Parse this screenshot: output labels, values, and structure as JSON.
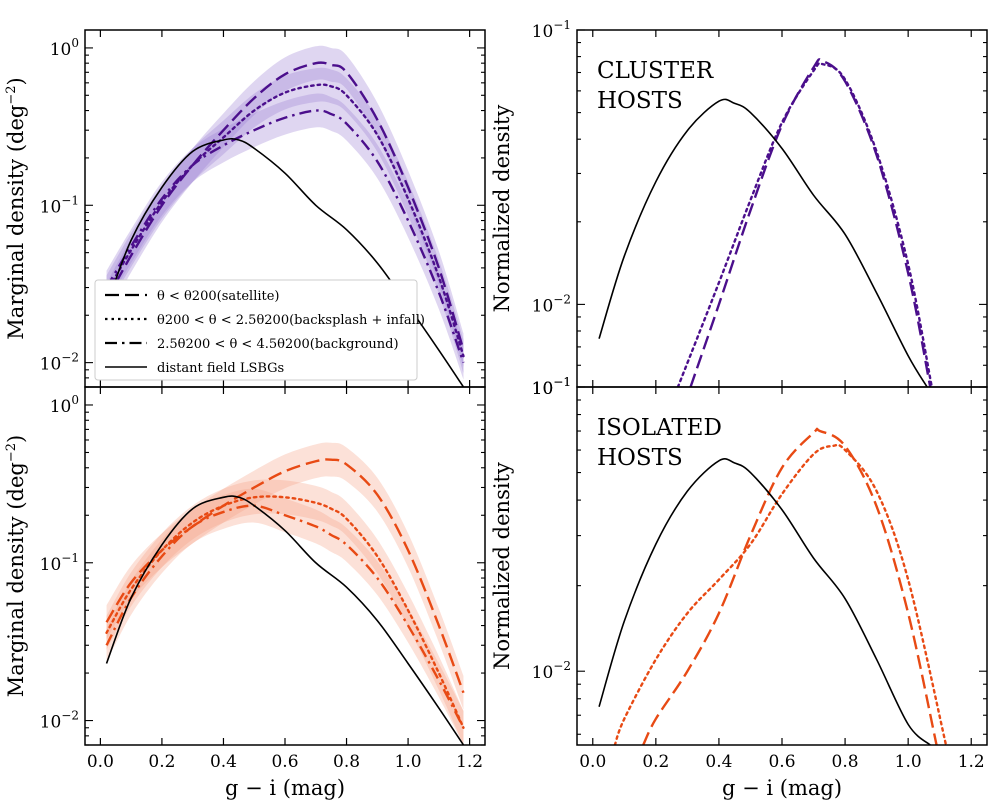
{
  "colors": {
    "cluster": "#4b0f8c",
    "cluster_band": "#9b7fd4",
    "isolated": "#e84a14",
    "isolated_band": "#f5a187",
    "field": "#000000"
  },
  "chart_data": [
    {
      "id": "cluster-marginal",
      "type": "line",
      "yscale": "log",
      "xlim": [
        -0.05,
        1.25
      ],
      "ylim": [
        0.007,
        1.3
      ],
      "xticks": [
        "0.0",
        "0.2",
        "0.4",
        "0.6",
        "0.8",
        "1.0",
        "1.2"
      ],
      "yticks": [
        "10^0",
        "10^-1",
        "10^-2"
      ],
      "ylabel": "Marginal density (deg^-2)",
      "xlabel": "",
      "legend": {
        "placement": "lower-left",
        "entries": [
          {
            "label": "θ < θ200(satellite)",
            "style": "dashed"
          },
          {
            "label": "θ200 < θ < 2.5θ200(backsplash + infall)",
            "style": "dotted"
          },
          {
            "label": "2.5θ200 < θ < 4.5θ200(background)",
            "style": "dashdot"
          },
          {
            "label": "distant field LSBGs",
            "style": "solid"
          }
        ]
      },
      "series": [
        {
          "name": "satellite",
          "style": "dashed",
          "band": true,
          "x": [
            0.02,
            0.1,
            0.2,
            0.3,
            0.4,
            0.5,
            0.6,
            0.7,
            0.75,
            0.8,
            0.9,
            1.0,
            1.1,
            1.18
          ],
          "y": [
            0.025,
            0.048,
            0.1,
            0.18,
            0.3,
            0.48,
            0.68,
            0.8,
            0.78,
            0.7,
            0.35,
            0.13,
            0.04,
            0.012
          ]
        },
        {
          "name": "backsplash + infall",
          "style": "dotted",
          "band": true,
          "x": [
            0.02,
            0.1,
            0.2,
            0.3,
            0.4,
            0.5,
            0.6,
            0.7,
            0.75,
            0.8,
            0.9,
            1.0,
            1.1,
            1.18
          ],
          "y": [
            0.028,
            0.052,
            0.105,
            0.18,
            0.27,
            0.4,
            0.52,
            0.58,
            0.57,
            0.5,
            0.28,
            0.11,
            0.035,
            0.011
          ]
        },
        {
          "name": "background",
          "style": "dashdot",
          "band": true,
          "x": [
            0.02,
            0.1,
            0.2,
            0.3,
            0.4,
            0.5,
            0.6,
            0.7,
            0.75,
            0.8,
            0.9,
            1.0,
            1.1,
            1.18
          ],
          "y": [
            0.03,
            0.055,
            0.11,
            0.18,
            0.24,
            0.3,
            0.36,
            0.4,
            0.38,
            0.33,
            0.19,
            0.08,
            0.028,
            0.01
          ]
        },
        {
          "name": "distant field LSBGs",
          "style": "solid",
          "band": false,
          "x": [
            0.02,
            0.1,
            0.2,
            0.3,
            0.4,
            0.45,
            0.5,
            0.6,
            0.7,
            0.8,
            0.9,
            1.0,
            1.1,
            1.18
          ],
          "y": [
            0.023,
            0.06,
            0.13,
            0.22,
            0.26,
            0.26,
            0.23,
            0.16,
            0.1,
            0.07,
            0.043,
            0.023,
            0.012,
            0.007
          ]
        }
      ]
    },
    {
      "id": "cluster-normalized",
      "type": "line",
      "yscale": "log",
      "xlim": [
        -0.05,
        1.25
      ],
      "ylim": [
        0.005,
        0.1
      ],
      "xticks": [
        "0.0",
        "0.2",
        "0.4",
        "0.6",
        "0.8",
        "1.0",
        "1.2"
      ],
      "yticks": [
        "10^-1",
        "10^-2",
        "10^-1"
      ],
      "ylabel": "Normalized density",
      "xlabel": "",
      "annotation": [
        "CLUSTER",
        "HOSTS"
      ],
      "series": [
        {
          "name": "satellite",
          "style": "dashed",
          "x": [
            0.31,
            0.4,
            0.5,
            0.6,
            0.7,
            0.73,
            0.8,
            0.9,
            1.0,
            1.07
          ],
          "y": [
            0.005,
            0.01,
            0.022,
            0.045,
            0.073,
            0.077,
            0.065,
            0.035,
            0.013,
            0.005
          ]
        },
        {
          "name": "backsplash + infall",
          "style": "dotted",
          "x": [
            0.27,
            0.4,
            0.5,
            0.6,
            0.7,
            0.73,
            0.8,
            0.9,
            1.0,
            1.075
          ],
          "y": [
            0.005,
            0.012,
            0.024,
            0.046,
            0.071,
            0.075,
            0.066,
            0.036,
            0.014,
            0.005
          ]
        },
        {
          "name": "distant field LSBGs",
          "style": "solid",
          "x": [
            0.02,
            0.1,
            0.2,
            0.3,
            0.4,
            0.45,
            0.5,
            0.6,
            0.7,
            0.8,
            0.9,
            1.0,
            1.06
          ],
          "y": [
            0.0075,
            0.015,
            0.028,
            0.043,
            0.055,
            0.054,
            0.05,
            0.037,
            0.025,
            0.018,
            0.011,
            0.0065,
            0.005
          ]
        }
      ]
    },
    {
      "id": "isolated-marginal",
      "type": "line",
      "yscale": "log",
      "xlim": [
        -0.05,
        1.25
      ],
      "ylim": [
        0.007,
        1.3
      ],
      "xticks": [
        "0.0",
        "0.2",
        "0.4",
        "0.6",
        "0.8",
        "1.0",
        "1.2"
      ],
      "yticks": [
        "10^0",
        "10^-1",
        "10^-2"
      ],
      "ylabel": "Marginal density (deg^-2)",
      "xlabel": "g − i (mag)",
      "series": [
        {
          "name": "satellite",
          "style": "dashed",
          "band": true,
          "x": [
            0.02,
            0.1,
            0.2,
            0.3,
            0.4,
            0.5,
            0.6,
            0.7,
            0.75,
            0.8,
            0.9,
            1.0,
            1.1,
            1.18
          ],
          "y": [
            0.042,
            0.075,
            0.12,
            0.17,
            0.23,
            0.3,
            0.38,
            0.44,
            0.45,
            0.42,
            0.27,
            0.12,
            0.04,
            0.015
          ]
        },
        {
          "name": "backsplash + infall",
          "style": "dotted",
          "band": true,
          "x": [
            0.02,
            0.1,
            0.2,
            0.3,
            0.4,
            0.5,
            0.6,
            0.7,
            0.75,
            0.8,
            0.9,
            1.0,
            1.1,
            1.18
          ],
          "y": [
            0.036,
            0.068,
            0.12,
            0.18,
            0.23,
            0.26,
            0.26,
            0.24,
            0.22,
            0.19,
            0.11,
            0.05,
            0.02,
            0.009
          ]
        },
        {
          "name": "background",
          "style": "dashdot",
          "band": true,
          "x": [
            0.02,
            0.1,
            0.2,
            0.3,
            0.4,
            0.5,
            0.6,
            0.7,
            0.75,
            0.8,
            0.9,
            1.0,
            1.1,
            1.18
          ],
          "y": [
            0.03,
            0.06,
            0.11,
            0.17,
            0.21,
            0.23,
            0.2,
            0.17,
            0.15,
            0.13,
            0.08,
            0.04,
            0.018,
            0.009
          ]
        },
        {
          "name": "distant field LSBGs",
          "style": "solid",
          "band": false,
          "x": [
            0.02,
            0.1,
            0.2,
            0.3,
            0.4,
            0.45,
            0.5,
            0.6,
            0.7,
            0.8,
            0.9,
            1.0,
            1.1,
            1.18
          ],
          "y": [
            0.023,
            0.06,
            0.13,
            0.22,
            0.26,
            0.26,
            0.23,
            0.16,
            0.1,
            0.07,
            0.043,
            0.023,
            0.012,
            0.007
          ]
        }
      ]
    },
    {
      "id": "isolated-normalized",
      "type": "line",
      "yscale": "log",
      "xlim": [
        -0.05,
        1.25
      ],
      "ylim": [
        0.0055,
        0.1
      ],
      "xticks": [
        "0.0",
        "0.2",
        "0.4",
        "0.6",
        "0.8",
        "1.0",
        "1.2"
      ],
      "yticks": [
        "10^-1",
        "10^-2"
      ],
      "ylabel": "Normalized density",
      "xlabel": "g − i (mag)",
      "annotation": [
        "ISOLATED",
        "HOSTS"
      ],
      "series": [
        {
          "name": "satellite",
          "style": "dashed",
          "x": [
            0.16,
            0.2,
            0.3,
            0.4,
            0.5,
            0.6,
            0.7,
            0.72,
            0.8,
            0.9,
            1.0,
            1.09
          ],
          "y": [
            0.0055,
            0.0068,
            0.01,
            0.016,
            0.03,
            0.052,
            0.069,
            0.07,
            0.062,
            0.038,
            0.016,
            0.0055
          ]
        },
        {
          "name": "backsplash + infall",
          "style": "dotted",
          "x": [
            0.07,
            0.1,
            0.2,
            0.3,
            0.4,
            0.5,
            0.6,
            0.7,
            0.76,
            0.8,
            0.9,
            1.0,
            1.12
          ],
          "y": [
            0.0055,
            0.0068,
            0.011,
            0.016,
            0.021,
            0.028,
            0.042,
            0.058,
            0.062,
            0.06,
            0.043,
            0.021,
            0.0055
          ]
        },
        {
          "name": "distant field LSBGs",
          "style": "solid",
          "x": [
            0.02,
            0.1,
            0.2,
            0.3,
            0.4,
            0.45,
            0.5,
            0.6,
            0.7,
            0.8,
            0.9,
            1.0,
            1.07
          ],
          "y": [
            0.0075,
            0.015,
            0.028,
            0.043,
            0.055,
            0.054,
            0.05,
            0.037,
            0.025,
            0.018,
            0.011,
            0.0065,
            0.0055
          ]
        }
      ]
    }
  ]
}
